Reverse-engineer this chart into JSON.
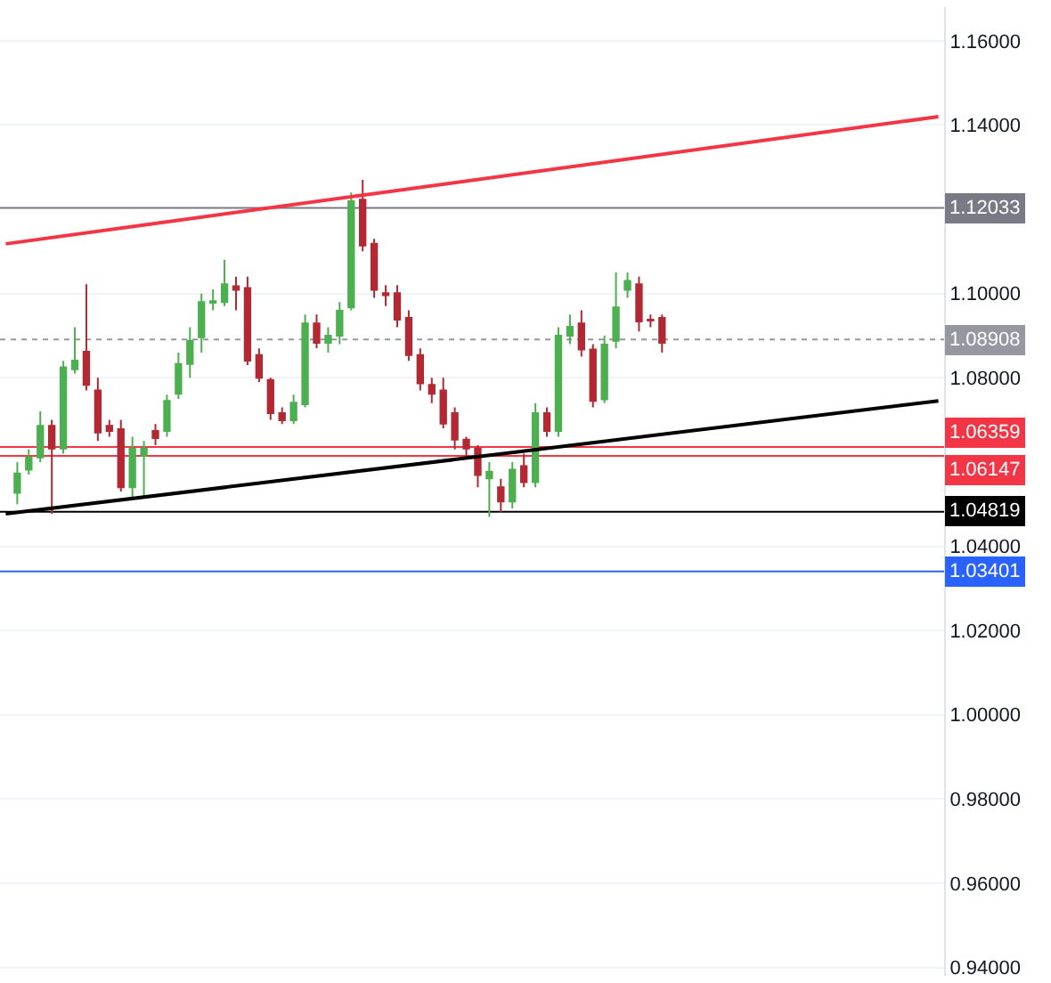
{
  "chart_data": {
    "type": "candlestick",
    "categories": [
      null,
      null,
      null,
      null,
      null,
      null,
      null,
      null,
      null,
      null,
      null,
      null,
      null,
      null,
      null,
      null,
      null,
      null,
      null,
      null,
      null,
      null,
      null,
      null,
      null,
      null,
      null,
      null,
      null,
      null,
      null,
      null,
      null,
      null,
      null,
      null,
      null,
      null,
      null,
      null,
      null,
      null,
      null,
      null,
      null,
      null,
      null,
      null,
      null,
      null,
      null,
      null,
      null,
      null,
      null,
      null,
      null,
      null,
      null,
      null,
      null,
      null,
      null,
      null,
      null,
      null,
      null,
      null,
      null,
      null,
      null,
      null,
      null,
      null,
      null,
      null,
      null,
      null,
      null,
      null,
      null,
      null
    ],
    "ohlc": [
      null,
      [
        1.0527,
        1.06,
        1.05,
        1.0573
      ],
      [
        1.0582,
        1.063,
        1.057,
        1.0611
      ],
      [
        1.0611,
        1.072,
        1.06,
        1.0686
      ],
      [
        1.0686,
        1.07,
        1.0477,
        1.0632
      ],
      [
        1.0632,
        1.084,
        1.062,
        1.0825
      ],
      [
        1.082,
        1.092,
        1.081,
        1.0841
      ],
      [
        1.0862,
        1.1022,
        1.077,
        1.0783
      ],
      [
        1.077,
        1.08,
        1.065,
        1.067
      ],
      [
        1.0686,
        1.07,
        1.066,
        1.0674
      ],
      [
        1.0678,
        1.07,
        1.053,
        1.054
      ],
      [
        1.054,
        1.066,
        1.051,
        1.0632
      ],
      [
        1.0615,
        1.065,
        1.052,
        1.0632
      ],
      [
        1.0674,
        1.069,
        1.064,
        1.0657
      ],
      [
        1.0674,
        1.076,
        1.066,
        1.0745
      ],
      [
        1.0762,
        1.086,
        1.075,
        1.0833
      ],
      [
        1.0833,
        1.092,
        1.08,
        1.0888
      ],
      [
        1.0896,
        1.1,
        1.086,
        1.098
      ],
      [
        1.0978,
        1.101,
        1.096,
        1.0982
      ],
      [
        1.098,
        1.108,
        1.097,
        1.1022
      ],
      [
        1.1017,
        1.104,
        1.096,
        1.1009
      ],
      [
        1.1013,
        1.104,
        1.083,
        1.0841
      ],
      [
        1.0854,
        1.087,
        1.079,
        1.08
      ],
      [
        1.0795,
        1.08,
        1.07,
        1.0716
      ],
      [
        1.0716,
        1.073,
        1.069,
        1.0699
      ],
      [
        1.0699,
        1.076,
        1.069,
        1.0741
      ],
      [
        1.0737,
        1.095,
        1.073,
        1.0929
      ],
      [
        1.0929,
        1.095,
        1.087,
        1.0883
      ],
      [
        1.0883,
        1.092,
        1.086,
        1.09
      ],
      [
        1.09,
        1.098,
        1.088,
        1.0959
      ],
      [
        1.0967,
        1.124,
        1.096,
        1.1219
      ],
      [
        1.1223,
        1.127,
        1.11,
        1.1114
      ],
      [
        1.1118,
        1.113,
        1.099,
        1.1009
      ],
      [
        1.1001,
        1.102,
        1.097,
        1.0996
      ],
      [
        1.1001,
        1.102,
        1.092,
        1.0938
      ],
      [
        1.0942,
        1.096,
        1.084,
        1.0854
      ],
      [
        1.0854,
        1.087,
        1.077,
        1.0787
      ],
      [
        1.0783,
        1.08,
        1.074,
        1.0762
      ],
      [
        1.077,
        1.08,
        1.068,
        1.0691
      ],
      [
        1.0716,
        1.073,
        1.063,
        1.0653
      ],
      [
        1.0653,
        1.066,
        1.061,
        1.0632
      ],
      [
        1.0632,
        1.064,
        1.054,
        1.0569
      ],
      [
        1.0561,
        1.06,
        1.047,
        1.0577
      ],
      [
        1.054,
        1.056,
        1.048,
        1.0506
      ],
      [
        1.0506,
        1.06,
        1.049,
        1.0582
      ],
      [
        1.059,
        1.062,
        1.054,
        1.0552
      ],
      [
        1.0552,
        1.074,
        1.054,
        1.0716
      ],
      [
        1.0716,
        1.073,
        1.066,
        1.0674
      ],
      [
        1.0674,
        1.092,
        1.066,
        1.09
      ],
      [
        1.09,
        1.095,
        1.088,
        1.0921
      ],
      [
        1.0929,
        1.096,
        1.085,
        1.0867
      ],
      [
        1.0867,
        1.088,
        1.073,
        1.0745
      ],
      [
        1.0749,
        1.09,
        1.074,
        1.0879
      ],
      [
        1.0888,
        1.105,
        1.087,
        1.0967
      ],
      [
        1.1009,
        1.105,
        1.099,
        1.103
      ],
      [
        1.1022,
        1.104,
        1.091,
        1.0934
      ],
      [
        1.0938,
        1.095,
        1.092,
        1.0936
      ],
      [
        1.0942,
        1.095,
        1.086,
        1.0883
      ],
      null,
      null,
      null,
      null,
      null,
      null,
      null,
      null,
      null,
      null,
      null,
      null,
      null,
      null,
      null,
      null,
      null,
      null,
      null,
      null,
      null,
      null,
      null,
      null
    ],
    "series": [
      {
        "type": "line",
        "color": "#000000",
        "values": [
          1.0477,
          null,
          null,
          null,
          null,
          null,
          null,
          null,
          null,
          null,
          null,
          null,
          null,
          null,
          null,
          null,
          null,
          null,
          null,
          null,
          null,
          null,
          null,
          null,
          null,
          null,
          null,
          null,
          null,
          null,
          null,
          null,
          null,
          null,
          null,
          null,
          null,
          null,
          null,
          null,
          null,
          null,
          null,
          null,
          null,
          null,
          null,
          null,
          null,
          null,
          null,
          null,
          null,
          null,
          null,
          null,
          null,
          null,
          null,
          null,
          null,
          null,
          null,
          null,
          null,
          null,
          null,
          null,
          null,
          null,
          null,
          null,
          null,
          null,
          null,
          null,
          null,
          null,
          null,
          null,
          null,
          1.0745
        ]
      },
      {
        "type": "line",
        "color": "#f23645",
        "values": [
          1.1118,
          null,
          null,
          null,
          null,
          null,
          null,
          null,
          null,
          null,
          null,
          null,
          null,
          null,
          null,
          null,
          null,
          null,
          null,
          null,
          null,
          null,
          null,
          null,
          null,
          null,
          null,
          null,
          null,
          null,
          null,
          null,
          null,
          null,
          null,
          null,
          null,
          null,
          null,
          null,
          null,
          null,
          null,
          null,
          null,
          null,
          null,
          null,
          null,
          null,
          null,
          null,
          null,
          null,
          null,
          null,
          null,
          null,
          null,
          null,
          null,
          null,
          null,
          null,
          null,
          null,
          null,
          null,
          null,
          null,
          null,
          null,
          null,
          null,
          null,
          null,
          null,
          null,
          null,
          null,
          null,
          1.142
        ]
      }
    ],
    "ylim": [
      0.938,
      1.168
    ],
    "yticks": [
      {
        "value": 0.94,
        "label": "0.94000"
      },
      {
        "value": 0.96,
        "label": "0.96000"
      },
      {
        "value": 0.98,
        "label": "0.98000"
      },
      {
        "value": 1.0,
        "label": "1.00000"
      },
      {
        "value": 1.02,
        "label": "1.02000"
      },
      {
        "value": 1.04,
        "label": "1.04000"
      },
      {
        "value": 1.08,
        "label": "1.08000"
      },
      {
        "value": 1.1,
        "label": "1.10000"
      },
      {
        "value": 1.14,
        "label": "1.14000"
      },
      {
        "value": 1.16,
        "label": "1.16000"
      }
    ],
    "ref_lines": [
      {
        "axis": "y",
        "value": 1.12033,
        "label": "1.12033",
        "color": "#787b86"
      },
      {
        "axis": "y",
        "value": 1.08908,
        "label": "1.08908",
        "color": "#9598a1",
        "line_style": "dotted"
      },
      {
        "axis": "y",
        "value": 1.06359,
        "label": "1.06359",
        "color": "#f23645"
      },
      {
        "axis": "y",
        "value": 1.06147,
        "label": "1.06147",
        "color": "#f23645"
      },
      {
        "axis": "y",
        "value": 1.04819,
        "label": "1.04819",
        "color": "#000000"
      },
      {
        "axis": "y",
        "value": 1.03401,
        "label": "1.03401",
        "color": "#2962ff"
      }
    ],
    "grid": "y",
    "tick_labels": "y"
  }
}
